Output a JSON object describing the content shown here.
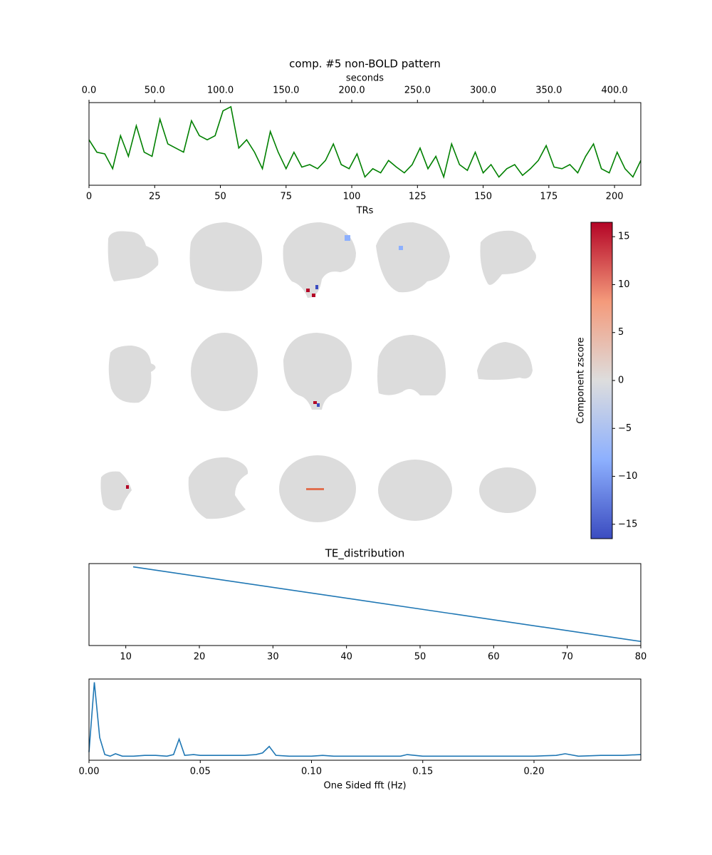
{
  "chart_data": [
    {
      "type": "line",
      "title": "comp. #5   non-BOLD pattern",
      "xlabel": "TRs",
      "x2label": "seconds",
      "x": [
        0,
        3,
        6,
        9,
        12,
        15,
        18,
        21,
        24,
        27,
        30,
        33,
        36,
        39,
        42,
        45,
        48,
        51,
        54,
        57,
        60,
        63,
        66,
        69,
        72,
        75,
        78,
        81,
        84,
        87,
        90,
        93,
        96,
        99,
        102,
        105,
        108,
        111,
        114,
        117,
        120,
        123,
        126,
        129,
        132,
        135,
        138,
        141,
        144,
        147,
        150,
        153,
        156,
        159,
        162,
        165,
        168,
        171,
        174,
        177,
        180,
        183,
        186,
        189,
        192,
        195,
        198,
        201,
        204,
        207,
        210
      ],
      "values": [
        55,
        40,
        38,
        20,
        60,
        35,
        72,
        40,
        35,
        80,
        50,
        45,
        40,
        78,
        60,
        55,
        60,
        90,
        95,
        45,
        55,
        40,
        20,
        65,
        40,
        20,
        40,
        22,
        25,
        20,
        30,
        50,
        25,
        20,
        38,
        10,
        20,
        15,
        30,
        22,
        15,
        25,
        45,
        20,
        35,
        10,
        50,
        25,
        18,
        40,
        15,
        25,
        10,
        20,
        25,
        12,
        20,
        30,
        48,
        22,
        20,
        25,
        15,
        35,
        50,
        20,
        15,
        40,
        20,
        10,
        30
      ],
      "color": "#008000",
      "xlim": [
        0,
        210
      ],
      "xticks": [
        0,
        25,
        50,
        75,
        100,
        125,
        150,
        175,
        200
      ],
      "ylim": [
        0,
        100
      ],
      "x2lim": [
        0,
        420
      ],
      "x2ticks": [
        {
          "value": 0,
          "label": "0.0"
        },
        {
          "value": 50,
          "label": "50.0"
        },
        {
          "value": 100,
          "label": "100.0"
        },
        {
          "value": 150,
          "label": "150.0"
        },
        {
          "value": 200,
          "label": "200.0"
        },
        {
          "value": 250,
          "label": "250.0"
        },
        {
          "value": 300,
          "label": "300.0"
        },
        {
          "value": 350,
          "label": "350.0"
        },
        {
          "value": 400,
          "label": "400.0"
        }
      ]
    },
    {
      "type": "colorbar",
      "label": "Component zscore",
      "zlim": [
        -16.5,
        16.5
      ],
      "colors": [
        "#3b4cc0",
        "#8db0fe",
        "#dddddd",
        "#f49a7b",
        "#b40426"
      ],
      "ticks": [
        {
          "value": -15,
          "label": "−15"
        },
        {
          "value": -10,
          "label": "−10"
        },
        {
          "value": -5,
          "label": "−5"
        },
        0,
        5,
        10,
        15
      ]
    },
    {
      "type": "line",
      "title": "TE_distribution",
      "x": [
        11,
        80
      ],
      "values": [
        0.96,
        0.05
      ],
      "color": "#1f77b4",
      "xlim": [
        5,
        80
      ],
      "xticks": [
        10,
        20,
        30,
        40,
        50,
        60,
        70,
        80
      ],
      "ylim": [
        0,
        1
      ]
    },
    {
      "type": "line",
      "xlabel": "One Sided fft (Hz)",
      "x": [
        0,
        0.0024,
        0.0048,
        0.0071,
        0.0095,
        0.0119,
        0.015,
        0.02,
        0.025,
        0.03,
        0.035,
        0.038,
        0.0405,
        0.043,
        0.047,
        0.05,
        0.055,
        0.06,
        0.065,
        0.07,
        0.075,
        0.078,
        0.081,
        0.084,
        0.09,
        0.1,
        0.105,
        0.11,
        0.12,
        0.13,
        0.14,
        0.143,
        0.15,
        0.16,
        0.17,
        0.18,
        0.19,
        0.2,
        0.21,
        0.214,
        0.22,
        0.23,
        0.24,
        0.248
      ],
      "values": [
        10,
        96,
        28,
        7,
        5,
        8,
        5,
        5,
        6,
        6,
        5,
        7,
        26,
        6,
        7,
        6,
        6,
        6,
        6,
        6,
        7,
        9,
        17,
        6,
        5,
        5,
        6,
        5,
        5,
        5,
        5,
        7,
        5,
        5,
        5,
        5,
        5,
        5,
        6,
        8,
        5,
        6,
        6,
        7
      ],
      "color": "#1f77b4",
      "xlim": [
        0,
        0.248
      ],
      "ylim": [
        0,
        100
      ],
      "xticks": [
        {
          "value": 0,
          "label": "0.00"
        },
        0.05,
        {
          "value": 0.1,
          "label": "0.10"
        },
        0.15,
        {
          "value": 0.2,
          "label": "0.20"
        }
      ]
    }
  ]
}
